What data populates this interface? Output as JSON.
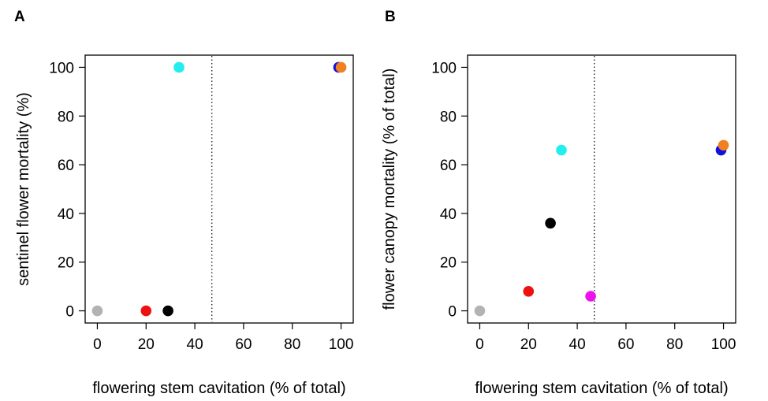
{
  "chart_data": [
    {
      "type": "scatter",
      "panel_letter": "A",
      "xlabel": "flowering stem cavitation (% of total)",
      "ylabel": "sentinel flower mortality (%)",
      "xlim": [
        -5,
        105
      ],
      "ylim": [
        -5,
        105
      ],
      "xticks": [
        0,
        20,
        40,
        60,
        80,
        100
      ],
      "yticks": [
        0,
        20,
        40,
        60,
        80,
        100
      ],
      "grid": false,
      "reference_line": {
        "orientation": "vertical",
        "x": 47,
        "style": "dotted"
      },
      "points": [
        {
          "x": 0,
          "y": 0,
          "color": "#b3b3b3"
        },
        {
          "x": 20,
          "y": 0,
          "color": "#ee1111"
        },
        {
          "x": 29,
          "y": 0,
          "color": "#000000"
        },
        {
          "x": 33.5,
          "y": 100,
          "color": "#22eeee"
        },
        {
          "x": 99,
          "y": 100,
          "color": "#1111dd"
        },
        {
          "x": 100,
          "y": 100,
          "color": "#f08020"
        }
      ]
    },
    {
      "type": "scatter",
      "panel_letter": "B",
      "xlabel": "flowering stem cavitation (% of total)",
      "ylabel": "flower canopy mortality (% of total)",
      "xlim": [
        -5,
        105
      ],
      "ylim": [
        -5,
        105
      ],
      "xticks": [
        0,
        20,
        40,
        60,
        80,
        100
      ],
      "yticks": [
        0,
        20,
        40,
        60,
        80,
        100
      ],
      "grid": false,
      "reference_line": {
        "orientation": "vertical",
        "x": 47,
        "style": "dotted"
      },
      "points": [
        {
          "x": 0,
          "y": 0,
          "color": "#b3b3b3"
        },
        {
          "x": 20,
          "y": 8,
          "color": "#ee1111"
        },
        {
          "x": 29,
          "y": 36,
          "color": "#000000"
        },
        {
          "x": 33.5,
          "y": 66,
          "color": "#22eeee"
        },
        {
          "x": 45.5,
          "y": 6,
          "color": "#ee11ee"
        },
        {
          "x": 99,
          "y": 66,
          "color": "#1111dd"
        },
        {
          "x": 100,
          "y": 68,
          "color": "#f08020"
        }
      ]
    }
  ]
}
